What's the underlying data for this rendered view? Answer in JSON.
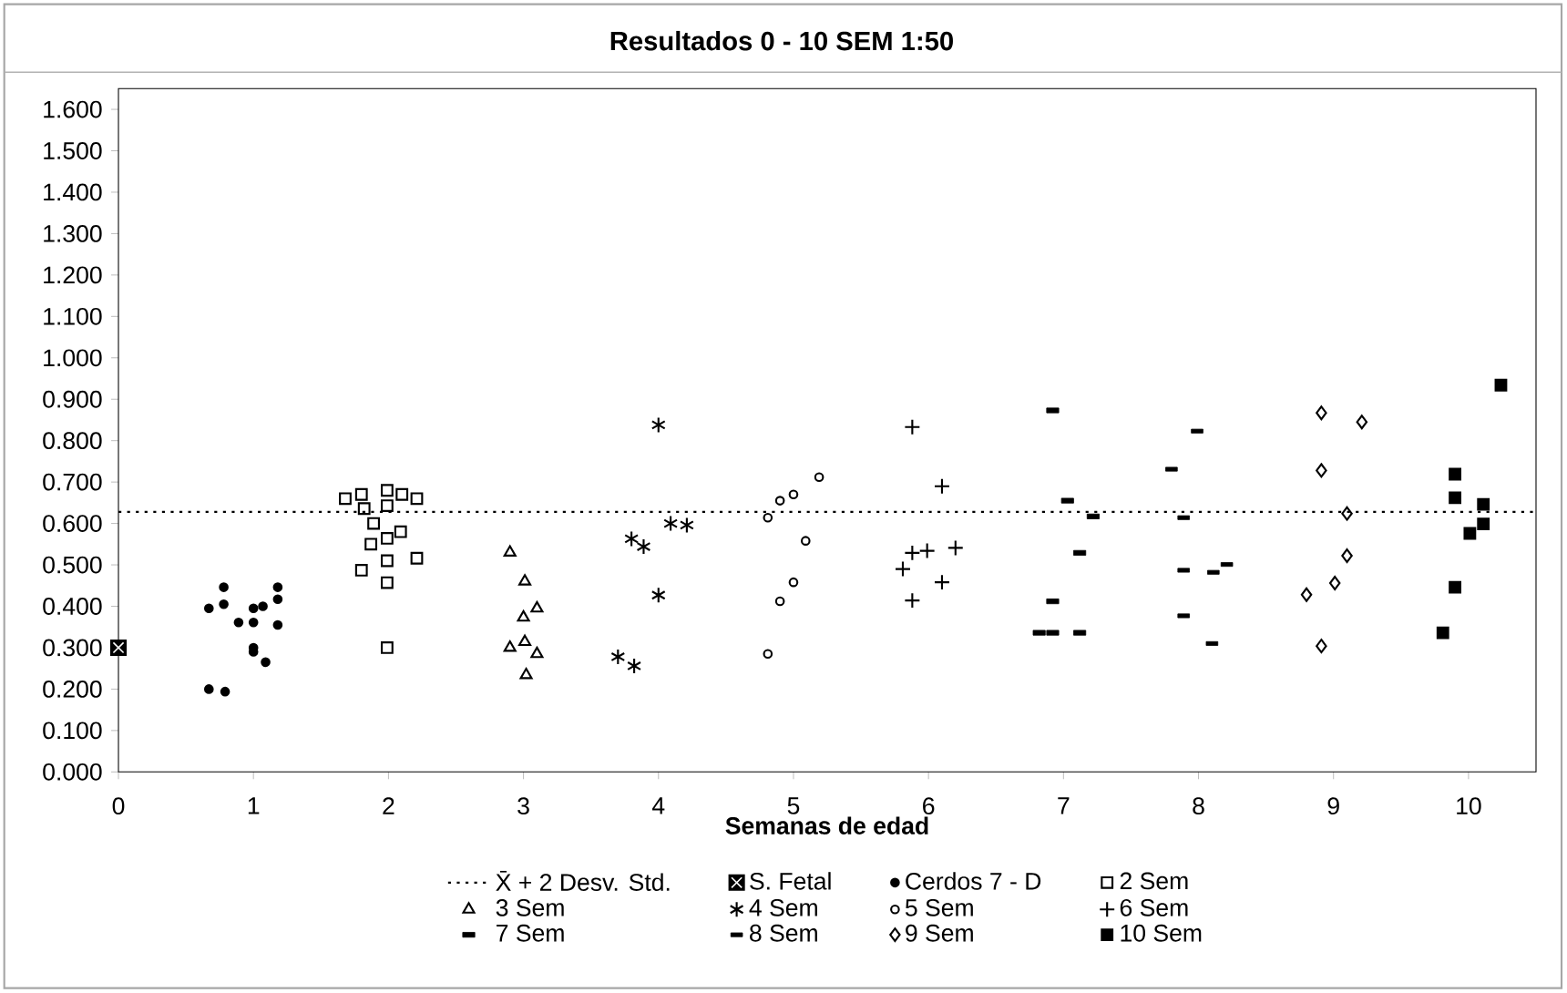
{
  "chart_data": {
    "type": "scatter",
    "title": "Resultados 0 - 10 SEM 1:50",
    "xlabel": "Semanas de edad",
    "xlim": [
      0,
      10.5
    ],
    "ylim": [
      0,
      1.65
    ],
    "xticks": [
      0,
      1,
      2,
      3,
      4,
      5,
      6,
      7,
      8,
      9,
      10
    ],
    "yticks": [
      {
        "value": 0,
        "label": "0.000"
      },
      {
        "value": 0.1,
        "label": "0.100"
      },
      {
        "value": 0.2,
        "label": "0.200"
      },
      {
        "value": 0.3,
        "label": "0.300"
      },
      {
        "value": 0.4,
        "label": "0.400"
      },
      {
        "value": 0.5,
        "label": "0.500"
      },
      {
        "value": 0.6,
        "label": "0.600"
      },
      {
        "value": 0.7,
        "label": "0.700"
      },
      {
        "value": 0.8,
        "label": "0.800"
      },
      {
        "value": 0.9,
        "label": "0.900"
      },
      {
        "value": 1.0,
        "label": "1.000"
      },
      {
        "value": 1.1,
        "label": "1.100"
      },
      {
        "value": 1.2,
        "label": "1.200"
      },
      {
        "value": 1.3,
        "label": "1.300"
      },
      {
        "value": 1.4,
        "label": "1.400"
      },
      {
        "value": 1.5,
        "label": "1.500"
      },
      {
        "value": 1.6,
        "label": "1.600"
      }
    ],
    "ref_lines": [
      {
        "axis": "y",
        "value": 0.628,
        "label": "X̄ + 2 Desv. Std.",
        "line_style": "dotted",
        "color": "#000000"
      }
    ],
    "legend": "bottom",
    "grid": false,
    "series": [
      {
        "name": "S. Fetal",
        "color": "#000000",
        "marker": "square",
        "x": [
          0
        ],
        "values": [
          0.3
        ]
      },
      {
        "name": "Cerdos 7 - D",
        "color": "#000000",
        "marker": "circle",
        "x": [
          0.67,
          0.78,
          0.78,
          0.67,
          0.79,
          0.89,
          1.0,
          1.0,
          1.07,
          1.0,
          1.0,
          1.09,
          1.18,
          1.18,
          1.18
        ],
        "values": [
          0.395,
          0.405,
          0.446,
          0.2,
          0.194,
          0.361,
          0.361,
          0.395,
          0.4,
          0.3,
          0.29,
          0.265,
          0.446,
          0.417,
          0.355
        ]
      },
      {
        "name": "2 Sem",
        "color": "#000000",
        "marker": "square",
        "x": [
          1.68,
          1.8,
          1.82,
          1.89,
          1.87,
          1.8,
          1.99,
          1.99,
          1.99,
          1.99,
          1.99,
          1.99,
          2.09,
          2.1,
          2.21,
          2.21
        ],
        "values": [
          0.66,
          0.67,
          0.636,
          0.6,
          0.55,
          0.487,
          0.68,
          0.643,
          0.564,
          0.51,
          0.457,
          0.3,
          0.58,
          0.67,
          0.66,
          0.516
        ]
      },
      {
        "name": "3 Sem",
        "color": "#000000",
        "marker": "triangle",
        "x": [
          2.9,
          3.01,
          3.0,
          3.1,
          2.9,
          3.01,
          3.1,
          3.02
        ],
        "values": [
          0.53,
          0.46,
          0.373,
          0.395,
          0.3,
          0.314,
          0.285,
          0.234
        ]
      },
      {
        "name": "4 Sem",
        "color": "#000000",
        "marker": "cross",
        "x": [
          4.0,
          3.8,
          3.89,
          4.09,
          4.21,
          4.0,
          3.7,
          3.82
        ],
        "values": [
          0.838,
          0.563,
          0.544,
          0.6,
          0.596,
          0.427,
          0.278,
          0.256
        ]
      },
      {
        "name": "5 Sem",
        "color": "#000000",
        "marker": "circle",
        "x": [
          4.81,
          4.9,
          5.0,
          5.19,
          5.09,
          5.0,
          4.9,
          4.81
        ],
        "values": [
          0.614,
          0.655,
          0.67,
          0.712,
          0.558,
          0.458,
          0.412,
          0.285
        ]
      },
      {
        "name": "6 Sem",
        "color": "#000000",
        "marker": "cross",
        "x": [
          5.88,
          6.1,
          5.88,
          5.99,
          6.2,
          5.81,
          6.1,
          5.88
        ],
        "values": [
          0.833,
          0.69,
          0.529,
          0.534,
          0.541,
          0.49,
          0.458,
          0.414
        ]
      },
      {
        "name": "7 Sem",
        "color": "#000000",
        "marker": "square",
        "x": [
          6.92,
          7.03,
          7.22,
          7.12,
          6.92,
          6.82,
          6.92,
          7.12
        ],
        "values": [
          0.873,
          0.655,
          0.617,
          0.529,
          0.412,
          0.336,
          0.336,
          0.336
        ]
      },
      {
        "name": "8 Sem",
        "color": "#000000",
        "marker": "square",
        "x": [
          7.99,
          7.8,
          7.89,
          7.89,
          8.11,
          8.21,
          7.89,
          8.1
        ],
        "values": [
          0.823,
          0.731,
          0.614,
          0.487,
          0.482,
          0.501,
          0.377,
          0.31
        ]
      },
      {
        "name": "9 Sem",
        "color": "#000000",
        "marker": "diamond",
        "x": [
          8.91,
          9.21,
          8.91,
          9.1,
          9.1,
          9.01,
          8.8,
          8.91
        ],
        "values": [
          0.867,
          0.845,
          0.728,
          0.624,
          0.522,
          0.456,
          0.428,
          0.304
        ]
      },
      {
        "name": "10 Sem",
        "color": "#000000",
        "marker": "square",
        "x": [
          10.24,
          9.9,
          9.9,
          10.11,
          10.11,
          10.01,
          9.9,
          9.81
        ],
        "values": [
          0.934,
          0.719,
          0.662,
          0.646,
          0.599,
          0.576,
          0.446,
          0.336
        ]
      }
    ]
  }
}
